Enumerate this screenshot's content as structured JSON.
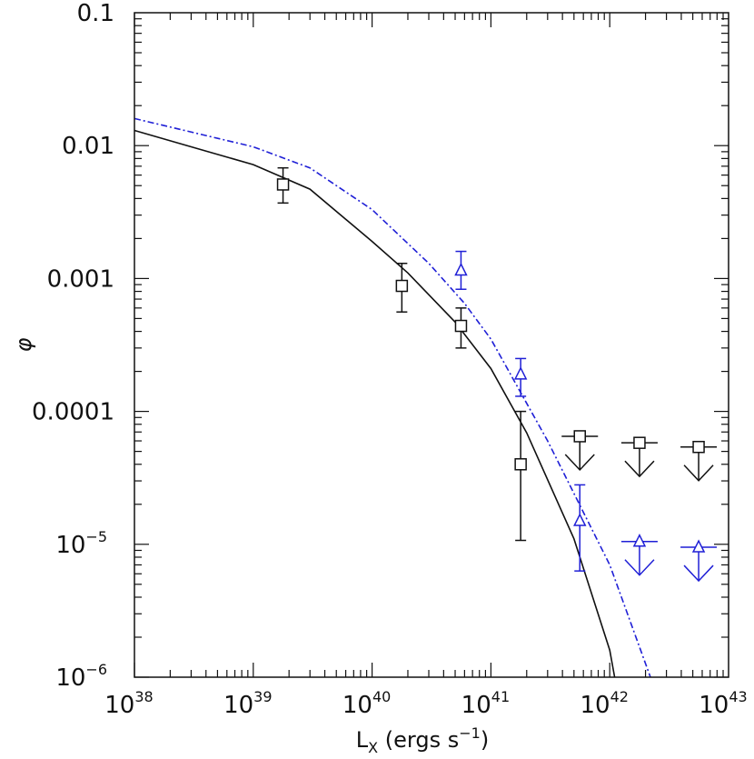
{
  "chart_data": {
    "type": "scatter",
    "title": "",
    "xlabel": "L",
    "xlabel_sub": "X",
    "xlabel_rest": " (ergs s",
    "xlabel_sup": "−1",
    "xlabel_end": ")",
    "ylabel": "φ",
    "xscale": "log",
    "yscale": "log",
    "xlim": [
      1e+38,
      1e+43
    ],
    "ylim": [
      1e-06,
      0.1
    ],
    "grid": false,
    "x_ticks": [
      {
        "value": 1e+38,
        "base": "10",
        "exp": "38"
      },
      {
        "value": 1e+39,
        "base": "10",
        "exp": "39"
      },
      {
        "value": 1e+40,
        "base": "10",
        "exp": "40"
      },
      {
        "value": 1e+41,
        "base": "10",
        "exp": "41"
      },
      {
        "value": 1e+42,
        "base": "10",
        "exp": "42"
      },
      {
        "value": 1e+43,
        "base": "10",
        "exp": "43"
      }
    ],
    "y_ticks": [
      {
        "value": 0.1,
        "base": "0.1",
        "exp": ""
      },
      {
        "value": 0.01,
        "base": "0.01",
        "exp": ""
      },
      {
        "value": 0.001,
        "base": "0.001",
        "exp": ""
      },
      {
        "value": 0.0001,
        "base": "0.0001",
        "exp": ""
      },
      {
        "value": 1e-05,
        "base": "10",
        "exp": "−5"
      },
      {
        "value": 1e-06,
        "base": "10",
        "exp": "−6"
      }
    ],
    "series": [
      {
        "color": "#111111",
        "marker": "square",
        "points": [
          {
            "x": 1.78e+39,
            "y": 0.0051,
            "ylo": 0.0037,
            "yhi": 0.0068
          },
          {
            "x": 1.78e+40,
            "y": 0.00088,
            "ylo": 0.00056,
            "yhi": 0.0013
          },
          {
            "x": 5.6e+40,
            "y": 0.00044,
            "ylo": 0.0003,
            "yhi": 0.0006
          },
          {
            "x": 1.78e+41,
            "y": 4e-05,
            "ylo": 1.07e-05,
            "yhi": 0.0001
          }
        ],
        "upper_limits": [
          {
            "x": 5.6e+41,
            "y": 6.5e-05
          },
          {
            "x": 1.78e+42,
            "y": 5.8e-05
          },
          {
            "x": 5.6e+42,
            "y": 5.4e-05
          }
        ],
        "fit_line": {
          "style": "solid",
          "x": [
            1e+38,
            3e+38,
            1e+39,
            3e+39,
            1e+40,
            2e+40,
            5e+40,
            1e+41,
            2e+41,
            5e+41,
            1e+42,
            1.1e+42
          ],
          "y": [
            0.013,
            0.0098,
            0.0072,
            0.0047,
            0.0019,
            0.0011,
            0.00047,
            0.00021,
            6.9e-05,
            1.1e-05,
            1.6e-06,
            1e-06
          ]
        }
      },
      {
        "color": "#1f1fd6",
        "marker": "triangle",
        "points": [
          {
            "x": 5.6e+40,
            "y": 0.00115,
            "ylo": 0.00083,
            "yhi": 0.0016
          },
          {
            "x": 1.78e+41,
            "y": 0.00019,
            "ylo": 0.00013,
            "yhi": 0.00025
          },
          {
            "x": 5.6e+41,
            "y": 1.5e-05,
            "ylo": 6.3e-06,
            "yhi": 2.8e-05
          }
        ],
        "upper_limits": [
          {
            "x": 1.78e+42,
            "y": 1.05e-05
          },
          {
            "x": 5.6e+42,
            "y": 9.5e-06
          }
        ],
        "fit_line": {
          "style": "dash-dot",
          "x": [
            1e+38,
            1e+39,
            3e+39,
            1e+40,
            3e+40,
            6e+40,
            1e+41,
            3e+41,
            1e+42,
            2.2e+42
          ],
          "y": [
            0.016,
            0.0098,
            0.0068,
            0.0033,
            0.0013,
            0.00065,
            0.00035,
            6e-05,
            7e-06,
            1e-06
          ]
        }
      }
    ]
  }
}
